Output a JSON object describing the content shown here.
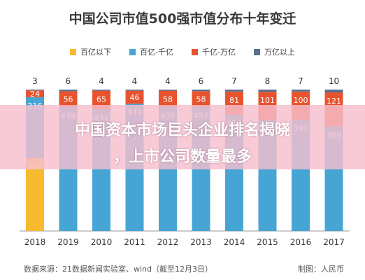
{
  "title": "中国公司市值500强市值分布十年变迁",
  "source": "数据来源：21数据新闻实验室、wind（截至12月3日）",
  "author": "制图：人民币",
  "overlay": {
    "line1": "中国资本市场巨头企业排名揭晓",
    "line2": "，上市公司数量最多"
  },
  "colors": {
    "s1": "#f7b92e",
    "s2": "#47a5d5",
    "s3": "#e8532e",
    "s4": "#5b6f8f"
  },
  "chart_data": {
    "type": "bar",
    "stacked": true,
    "categories": [
      "2018",
      "2019",
      "2010",
      "2011",
      "2012",
      "2013",
      "2014",
      "2015",
      "2016",
      "2017"
    ],
    "series": [
      {
        "name": "百亿以下",
        "values": [
          257,
          0,
          0,
          0,
          0,
          0,
          0,
          0,
          0,
          0
        ]
      },
      {
        "name": "百亿-千亿",
        "values": [
          216,
          438,
          431,
          449,
          438,
          457,
          412,
          391,
          393,
          369
        ]
      },
      {
        "name": "千亿-万亿",
        "values": [
          24,
          56,
          65,
          46,
          58,
          58,
          81,
          101,
          100,
          121
        ]
      },
      {
        "name": "万亿以上",
        "values": [
          3,
          6,
          4,
          4,
          4,
          6,
          7,
          8,
          7,
          10
        ]
      }
    ],
    "ylim": [
      0,
      500
    ],
    "grid": false,
    "legend_position": "top"
  }
}
